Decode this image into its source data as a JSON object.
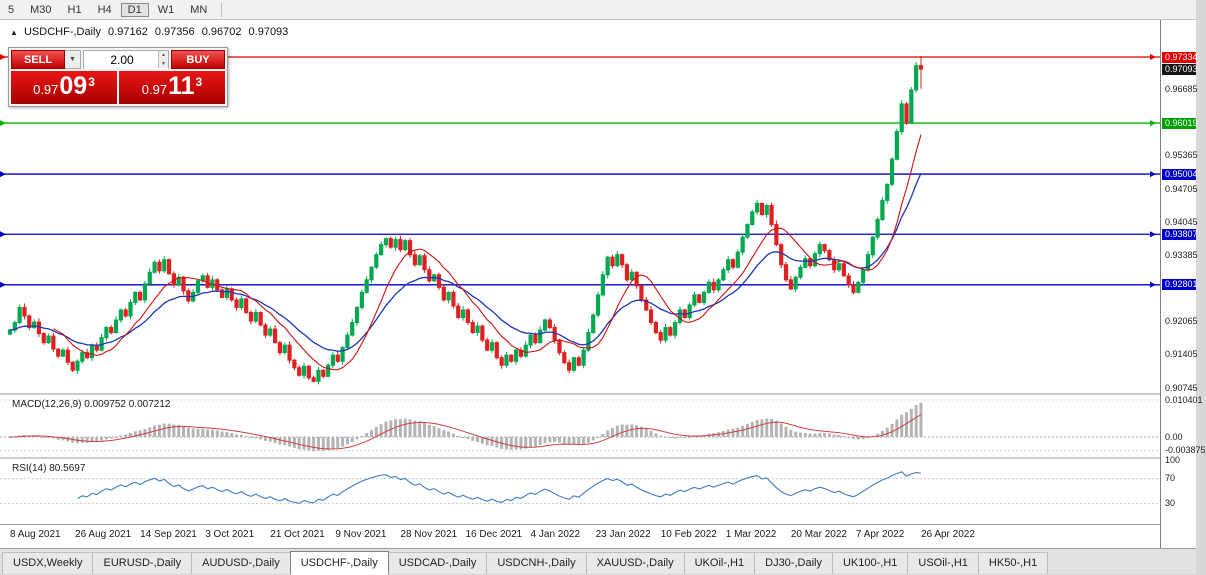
{
  "toolbar": {
    "timeframes": [
      {
        "label": "5",
        "active": false
      },
      {
        "label": "M30",
        "active": false
      },
      {
        "label": "H1",
        "active": false
      },
      {
        "label": "H4",
        "active": false
      },
      {
        "label": "D1",
        "active": true
      },
      {
        "label": "W1",
        "active": false
      },
      {
        "label": "MN",
        "active": false
      }
    ]
  },
  "chart_header": {
    "direction_icon": "▲",
    "title": "USDCHF-,Daily",
    "open": "0.97162",
    "high": "0.97356",
    "low": "0.96702",
    "close": "0.97093"
  },
  "trade_panel": {
    "sell_label": "SELL",
    "buy_label": "BUY",
    "volume": "2.00",
    "dropdown_icon": "▼",
    "spin_up_icon": "▲",
    "spin_down_icon": "▼",
    "sell_price_small": "0.97",
    "sell_price_big": "09",
    "sell_price_sup": "3",
    "buy_price_small": "0.97",
    "buy_price_big": "11",
    "buy_price_sup": "3"
  },
  "chart_data": {
    "type": "candlestick",
    "symbol": "USDCHF-",
    "timeframe": "Daily",
    "bull_color": "#00a94f",
    "bear_color": "#e02020",
    "ma_fast_color": "#cc1111",
    "ma_slow_color": "#1f35b5",
    "last_candle": {
      "open": 0.97162,
      "high": 0.97356,
      "low": 0.96702,
      "close": 0.97093
    },
    "closes": [
      0.919,
      0.9205,
      0.9235,
      0.9218,
      0.9195,
      0.9206,
      0.9183,
      0.9165,
      0.9178,
      0.9152,
      0.9138,
      0.915,
      0.9126,
      0.911,
      0.9128,
      0.9145,
      0.9135,
      0.916,
      0.915,
      0.9175,
      0.9195,
      0.9185,
      0.921,
      0.923,
      0.9218,
      0.9245,
      0.9265,
      0.925,
      0.9282,
      0.9305,
      0.9325,
      0.9308,
      0.933,
      0.9302,
      0.928,
      0.9295,
      0.9268,
      0.9248,
      0.9265,
      0.9288,
      0.9298,
      0.9275,
      0.929,
      0.927,
      0.9255,
      0.9272,
      0.925,
      0.9235,
      0.9252,
      0.9225,
      0.9208,
      0.9225,
      0.92,
      0.918,
      0.9192,
      0.9165,
      0.9145,
      0.916,
      0.913,
      0.9115,
      0.91,
      0.9118,
      0.9095,
      0.9088,
      0.911,
      0.9098,
      0.912,
      0.914,
      0.9128,
      0.9155,
      0.918,
      0.9205,
      0.9235,
      0.9265,
      0.929,
      0.9315,
      0.934,
      0.936,
      0.9372,
      0.9355,
      0.937,
      0.935,
      0.9368,
      0.934,
      0.932,
      0.9338,
      0.931,
      0.9288,
      0.93,
      0.9275,
      0.925,
      0.9265,
      0.9238,
      0.9215,
      0.923,
      0.9205,
      0.9185,
      0.9198,
      0.917,
      0.915,
      0.9165,
      0.9135,
      0.912,
      0.914,
      0.9128,
      0.915,
      0.9138,
      0.916,
      0.918,
      0.9165,
      0.919,
      0.921,
      0.9195,
      0.917,
      0.9145,
      0.9125,
      0.911,
      0.9135,
      0.912,
      0.915,
      0.9185,
      0.922,
      0.926,
      0.93,
      0.9335,
      0.9318,
      0.934,
      0.932,
      0.929,
      0.9305,
      0.9278,
      0.925,
      0.923,
      0.9205,
      0.9185,
      0.917,
      0.9195,
      0.918,
      0.9205,
      0.923,
      0.9215,
      0.924,
      0.926,
      0.9245,
      0.9265,
      0.9285,
      0.927,
      0.929,
      0.931,
      0.933,
      0.9315,
      0.9345,
      0.9375,
      0.94,
      0.9425,
      0.9442,
      0.942,
      0.9438,
      0.94,
      0.936,
      0.932,
      0.929,
      0.9272,
      0.9295,
      0.9315,
      0.9332,
      0.9318,
      0.9342,
      0.936,
      0.9348,
      0.933,
      0.931,
      0.9322,
      0.9298,
      0.928,
      0.9265,
      0.9285,
      0.931,
      0.934,
      0.9375,
      0.941,
      0.9448,
      0.948,
      0.953,
      0.9585,
      0.964,
      0.9602,
      0.9668,
      0.97162,
      0.97093
    ],
    "h_lines": [
      {
        "price": 0.97334,
        "color": "#e00000"
      },
      {
        "price": 0.96019,
        "color": "#00b400"
      },
      {
        "price": 0.95004,
        "color": "#0000c8"
      },
      {
        "price": 0.93807,
        "color": "#0000c8"
      },
      {
        "price": 0.92801,
        "color": "#0000c8"
      }
    ],
    "indicators": [
      {
        "name": "MACD",
        "params": "12,26,9",
        "label": "MACD(12,26,9) 0.009752 0.007212",
        "axis_labels": [
          {
            "text": "0.010401",
            "value": 0.010401
          },
          {
            "text": "0.00",
            "value": 0.0
          },
          {
            "text": "-0.003875",
            "value": -0.003875
          }
        ]
      },
      {
        "name": "RSI",
        "params": "14",
        "label": "RSI(14) 80.5697",
        "axis_labels": [
          {
            "text": "100",
            "value": 100
          },
          {
            "text": "70",
            "value": 70
          },
          {
            "text": "30",
            "value": 30
          }
        ]
      }
    ],
    "x_labels": [
      "8 Aug 2021",
      "26 Aug 2021",
      "14 Sep 2021",
      "3 Oct 2021",
      "21 Oct 2021",
      "9 Nov 2021",
      "28 Nov 2021",
      "16 Dec 2021",
      "4 Jan 2022",
      "23 Jan 2022",
      "10 Feb 2022",
      "1 Mar 2022",
      "20 Mar 2022",
      "7 Apr 2022",
      "26 Apr 2022"
    ],
    "y_labels": [
      {
        "text": "0.97334",
        "value": 0.97334,
        "type": "red"
      },
      {
        "text": "0.97093",
        "value": 0.97093,
        "type": "dark"
      },
      {
        "text": "0.96685",
        "value": 0.96685,
        "type": "plain"
      },
      {
        "text": "0.96019",
        "value": 0.96019,
        "type": "green"
      },
      {
        "text": "0.95365",
        "value": 0.95365,
        "type": "plain"
      },
      {
        "text": "0.95004",
        "value": 0.95004,
        "type": "blue"
      },
      {
        "text": "0.94705",
        "value": 0.94705,
        "type": "plain"
      },
      {
        "text": "0.94045",
        "value": 0.94045,
        "type": "plain"
      },
      {
        "text": "0.93807",
        "value": 0.93807,
        "type": "blue"
      },
      {
        "text": "0.93385",
        "value": 0.93385,
        "type": "plain"
      },
      {
        "text": "0.92801",
        "value": 0.92801,
        "type": "blue"
      },
      {
        "text": "0.92065",
        "value": 0.92065,
        "type": "plain"
      },
      {
        "text": "0.91405",
        "value": 0.91405,
        "type": "plain"
      },
      {
        "text": "0.90745",
        "value": 0.90745,
        "type": "plain"
      }
    ]
  },
  "tabs": [
    {
      "label": "USDX,Weekly",
      "active": false
    },
    {
      "label": "EURUSD-,Daily",
      "active": false
    },
    {
      "label": "AUDUSD-,Daily",
      "active": false
    },
    {
      "label": "USDCHF-,Daily",
      "active": true
    },
    {
      "label": "USDCAD-,Daily",
      "active": false
    },
    {
      "label": "USDCNH-,Daily",
      "active": false
    },
    {
      "label": "XAUUSD-,Daily",
      "active": false
    },
    {
      "label": "UKOil-,H1",
      "active": false
    },
    {
      "label": "DJ30-,Daily",
      "active": false
    },
    {
      "label": "UK100-,H1",
      "active": false
    },
    {
      "label": "USOil-,H1",
      "active": false
    },
    {
      "label": "HK50-,H1",
      "active": false
    }
  ]
}
